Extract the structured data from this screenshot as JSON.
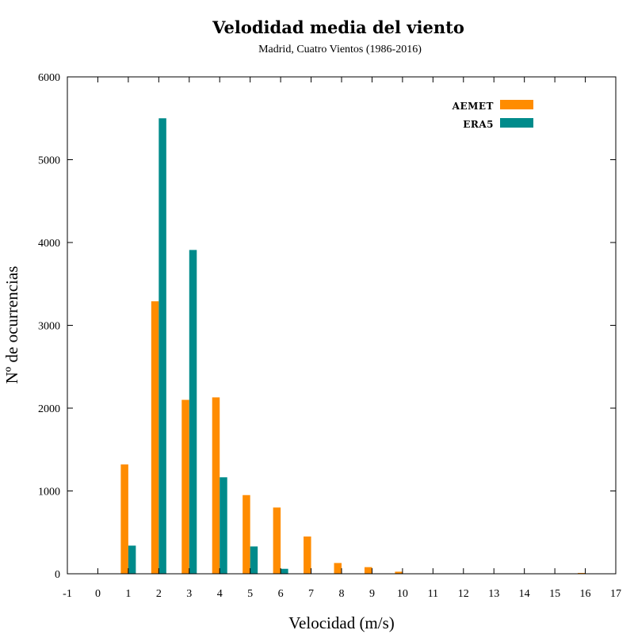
{
  "chart_data": {
    "type": "bar",
    "title": "Velodidad media del viento",
    "subtitle": "Madrid, Cuatro Vientos (1986-2016)",
    "xlabel": "Velocidad (m/s)",
    "ylabel": "Nº de ocurrencias",
    "xlim": [
      -1,
      17
    ],
    "ylim": [
      0,
      6000
    ],
    "x_ticks": [
      -1,
      0,
      1,
      2,
      3,
      4,
      5,
      6,
      7,
      8,
      9,
      10,
      11,
      12,
      13,
      14,
      15,
      16,
      17
    ],
    "y_ticks": [
      0,
      1000,
      2000,
      3000,
      4000,
      5000,
      6000
    ],
    "legend_position": "top-right",
    "grid": false,
    "series": [
      {
        "name": "AEMET",
        "color": "#ff8c00",
        "x": [
          1,
          2,
          3,
          4,
          5,
          6,
          7,
          8,
          9,
          10,
          16
        ],
        "values": [
          1320,
          3290,
          2100,
          2130,
          950,
          800,
          450,
          130,
          80,
          25,
          10
        ]
      },
      {
        "name": "ERA5",
        "color": "#008b8b",
        "x": [
          1,
          2,
          3,
          4,
          5,
          6
        ],
        "values": [
          340,
          5500,
          3910,
          1165,
          330,
          60
        ]
      }
    ]
  }
}
